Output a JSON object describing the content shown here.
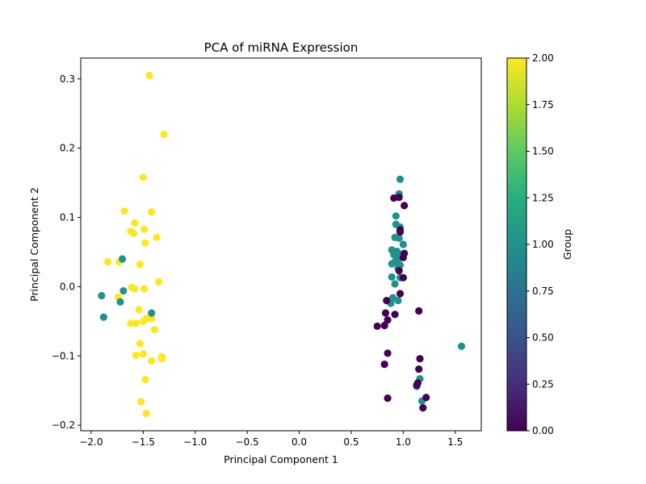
{
  "chart_data": {
    "type": "scatter",
    "title": "PCA of miRNA Expression",
    "xlabel": "Principal Component 1",
    "ylabel": "Principal Component 2",
    "xlim": [
      -2.1,
      1.75
    ],
    "ylim": [
      -0.208,
      0.33
    ],
    "xticks": [
      -2.0,
      -1.5,
      -1.0,
      -0.5,
      0.0,
      0.5,
      1.0,
      1.5
    ],
    "xtick_labels": [
      "−2.0",
      "−1.5",
      "−1.0",
      "−0.5",
      "0.0",
      "0.5",
      "1.0",
      "1.5"
    ],
    "yticks": [
      -0.2,
      -0.1,
      0.0,
      0.1,
      0.2,
      0.3
    ],
    "ytick_labels": [
      "−0.2",
      "−0.1",
      "0.0",
      "0.1",
      "0.2",
      "0.3"
    ],
    "grid": false,
    "colorbar": {
      "label": "Group",
      "min": 0.0,
      "max": 2.0,
      "colormap": "viridis",
      "ticks": [
        0.0,
        0.25,
        0.5,
        0.75,
        1.0,
        1.25,
        1.5,
        1.75,
        2.0
      ],
      "tick_labels": [
        "0.00",
        "0.25",
        "0.50",
        "0.75",
        "1.00",
        "1.25",
        "1.50",
        "1.75",
        "2.00"
      ]
    },
    "group_colors": [
      "#440154",
      "#21918c",
      "#fde725"
    ],
    "points": [
      {
        "x": -1.44,
        "y": 0.305,
        "g": 2
      },
      {
        "x": -1.3,
        "y": 0.22,
        "g": 2
      },
      {
        "x": -1.5,
        "y": 0.158,
        "g": 2
      },
      {
        "x": -1.68,
        "y": 0.109,
        "g": 2
      },
      {
        "x": -1.42,
        "y": 0.108,
        "g": 2
      },
      {
        "x": -1.58,
        "y": 0.092,
        "g": 2
      },
      {
        "x": -1.49,
        "y": 0.083,
        "g": 2
      },
      {
        "x": -1.62,
        "y": 0.08,
        "g": 2
      },
      {
        "x": -1.59,
        "y": 0.077,
        "g": 2
      },
      {
        "x": -1.37,
        "y": 0.071,
        "g": 2
      },
      {
        "x": -1.48,
        "y": 0.063,
        "g": 2
      },
      {
        "x": -1.84,
        "y": 0.036,
        "g": 2
      },
      {
        "x": -1.73,
        "y": 0.036,
        "g": 2
      },
      {
        "x": -1.53,
        "y": 0.032,
        "g": 2
      },
      {
        "x": -1.35,
        "y": 0.007,
        "g": 2
      },
      {
        "x": -1.61,
        "y": -0.001,
        "g": 2
      },
      {
        "x": -1.58,
        "y": -0.003,
        "g": 2
      },
      {
        "x": -1.49,
        "y": -0.003,
        "g": 2
      },
      {
        "x": -1.74,
        "y": -0.015,
        "g": 2
      },
      {
        "x": -1.54,
        "y": -0.033,
        "g": 2
      },
      {
        "x": -1.42,
        "y": -0.046,
        "g": 2
      },
      {
        "x": -1.47,
        "y": -0.046,
        "g": 2
      },
      {
        "x": -1.5,
        "y": -0.05,
        "g": 2
      },
      {
        "x": -1.62,
        "y": -0.053,
        "g": 2
      },
      {
        "x": -1.57,
        "y": -0.053,
        "g": 2
      },
      {
        "x": -1.39,
        "y": -0.062,
        "g": 2
      },
      {
        "x": -1.53,
        "y": -0.082,
        "g": 2
      },
      {
        "x": -1.5,
        "y": -0.097,
        "g": 2
      },
      {
        "x": -1.57,
        "y": -0.099,
        "g": 2
      },
      {
        "x": -1.32,
        "y": -0.101,
        "g": 2
      },
      {
        "x": -1.32,
        "y": -0.104,
        "g": 2
      },
      {
        "x": -1.42,
        "y": -0.107,
        "g": 2
      },
      {
        "x": -1.48,
        "y": -0.134,
        "g": 2
      },
      {
        "x": -1.52,
        "y": -0.166,
        "g": 2
      },
      {
        "x": -1.47,
        "y": -0.183,
        "g": 2
      },
      {
        "x": -1.7,
        "y": 0.04,
        "g": 1
      },
      {
        "x": -1.69,
        "y": -0.006,
        "g": 1
      },
      {
        "x": -1.9,
        "y": -0.013,
        "g": 1
      },
      {
        "x": -1.72,
        "y": -0.022,
        "g": 1
      },
      {
        "x": -1.42,
        "y": -0.038,
        "g": 1
      },
      {
        "x": -1.88,
        "y": -0.044,
        "g": 1
      },
      {
        "x": 0.97,
        "y": 0.155,
        "g": 1
      },
      {
        "x": 0.96,
        "y": 0.134,
        "g": 1
      },
      {
        "x": 0.93,
        "y": 0.102,
        "g": 1
      },
      {
        "x": 0.93,
        "y": 0.09,
        "g": 1
      },
      {
        "x": 0.97,
        "y": 0.086,
        "g": 1
      },
      {
        "x": 0.92,
        "y": 0.071,
        "g": 1
      },
      {
        "x": 0.96,
        "y": 0.07,
        "g": 1
      },
      {
        "x": 1.0,
        "y": 0.061,
        "g": 1
      },
      {
        "x": 0.89,
        "y": 0.053,
        "g": 1
      },
      {
        "x": 0.94,
        "y": 0.051,
        "g": 1
      },
      {
        "x": 0.91,
        "y": 0.046,
        "g": 1
      },
      {
        "x": 0.98,
        "y": 0.046,
        "g": 1
      },
      {
        "x": 0.95,
        "y": 0.04,
        "g": 1
      },
      {
        "x": 0.92,
        "y": 0.036,
        "g": 1
      },
      {
        "x": 0.89,
        "y": 0.033,
        "g": 1
      },
      {
        "x": 0.97,
        "y": 0.031,
        "g": 1
      },
      {
        "x": 0.95,
        "y": 0.027,
        "g": 1
      },
      {
        "x": 0.89,
        "y": 0.014,
        "g": 1
      },
      {
        "x": 0.97,
        "y": 0.013,
        "g": 1
      },
      {
        "x": 0.92,
        "y": 0.004,
        "g": 1
      },
      {
        "x": 0.9,
        "y": -0.016,
        "g": 1
      },
      {
        "x": 0.95,
        "y": -0.02,
        "g": 1
      },
      {
        "x": 0.88,
        "y": -0.024,
        "g": 1
      },
      {
        "x": 1.56,
        "y": -0.086,
        "g": 1
      },
      {
        "x": 1.16,
        "y": -0.133,
        "g": 1
      },
      {
        "x": 1.13,
        "y": -0.144,
        "g": 1
      },
      {
        "x": 1.18,
        "y": -0.165,
        "g": 1
      },
      {
        "x": 0.91,
        "y": 0.128,
        "g": 0
      },
      {
        "x": 0.96,
        "y": 0.129,
        "g": 0
      },
      {
        "x": 1.01,
        "y": 0.117,
        "g": 0
      },
      {
        "x": 0.97,
        "y": 0.082,
        "g": 0
      },
      {
        "x": 0.97,
        "y": 0.079,
        "g": 0
      },
      {
        "x": 1.01,
        "y": 0.048,
        "g": 0
      },
      {
        "x": 1.0,
        "y": 0.042,
        "g": 0
      },
      {
        "x": 0.96,
        "y": 0.023,
        "g": 0
      },
      {
        "x": 1.0,
        "y": 0.013,
        "g": 0
      },
      {
        "x": 0.97,
        "y": -0.01,
        "g": 0
      },
      {
        "x": 0.84,
        "y": -0.02,
        "g": 0
      },
      {
        "x": 1.15,
        "y": -0.035,
        "g": 0
      },
      {
        "x": 0.83,
        "y": -0.038,
        "g": 0
      },
      {
        "x": 0.92,
        "y": -0.04,
        "g": 0
      },
      {
        "x": 0.85,
        "y": -0.048,
        "g": 0
      },
      {
        "x": 0.75,
        "y": -0.057,
        "g": 0
      },
      {
        "x": 0.82,
        "y": -0.056,
        "g": 0
      },
      {
        "x": 0.85,
        "y": -0.096,
        "g": 0
      },
      {
        "x": 1.16,
        "y": -0.104,
        "g": 0
      },
      {
        "x": 0.82,
        "y": -0.112,
        "g": 0
      },
      {
        "x": 1.15,
        "y": -0.119,
        "g": 0
      },
      {
        "x": 1.14,
        "y": -0.139,
        "g": 0
      },
      {
        "x": 1.22,
        "y": -0.16,
        "g": 0
      },
      {
        "x": 0.85,
        "y": -0.161,
        "g": 0
      },
      {
        "x": 1.19,
        "y": -0.175,
        "g": 0
      },
      {
        "x": 1.13,
        "y": -0.142,
        "g": 0
      }
    ]
  }
}
